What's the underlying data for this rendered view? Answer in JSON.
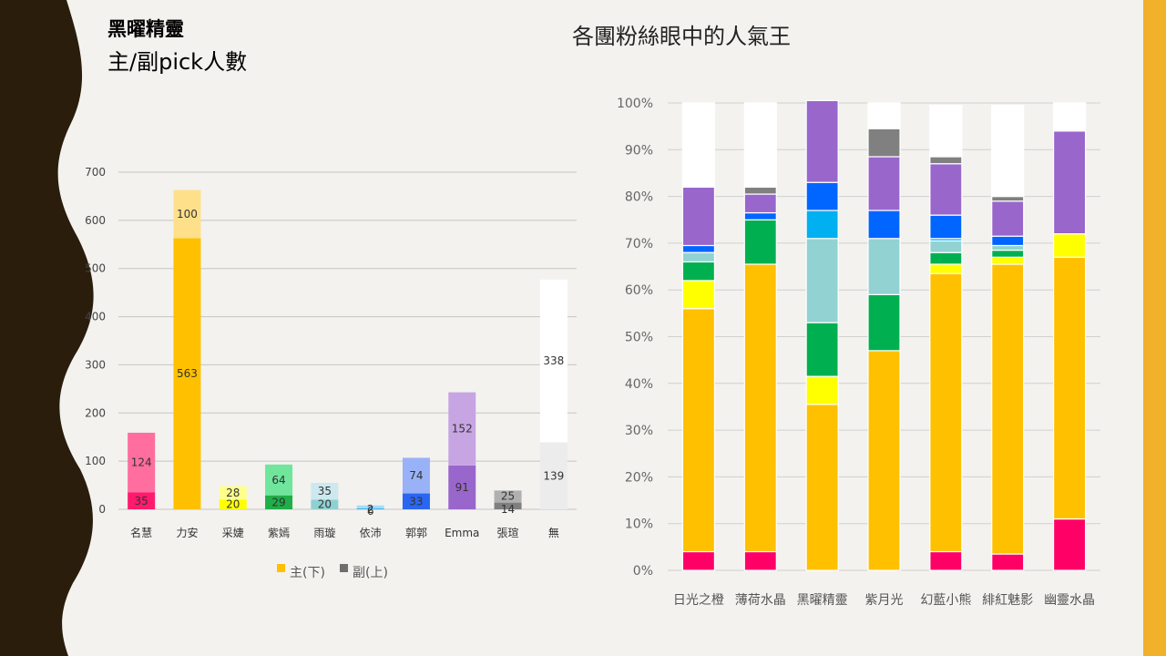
{
  "header": {
    "title": "黑曜精靈",
    "subtitle": "主/副pick人數",
    "right_title": "各團粉絲眼中的人氣王"
  },
  "chart_data": [
    {
      "type": "bar",
      "stacked": true,
      "categories": [
        "名慧",
        "力安",
        "采婕",
        "紫嫣",
        "雨璇",
        "依沛",
        "郭郭",
        "Emma",
        "張瑄",
        "無"
      ],
      "series": [
        {
          "name": "主(下)",
          "values": [
            35,
            563,
            20,
            29,
            20,
            2,
            33,
            91,
            14,
            139
          ]
        },
        {
          "name": "副(上)",
          "values": [
            124,
            100,
            28,
            64,
            35,
            6,
            74,
            152,
            25,
            338
          ]
        }
      ],
      "main_colors": [
        "#ff1a6e",
        "#ffc000",
        "#ffff00",
        "#1fae48",
        "#8fd1d3",
        "#3fb6ec",
        "#2a66f2",
        "#9966cc",
        "#7f7f7f",
        "#ececec"
      ],
      "sub_colors": [
        "#ff6e9e",
        "#ffe08a",
        "#ffff8c",
        "#6fe69c",
        "#cde8ef",
        "#a6dcf6",
        "#99b2f7",
        "#c7a5e3",
        "#b0b0b0",
        "#ffffff"
      ],
      "ylim": [
        0,
        700
      ],
      "yticks": [
        0,
        100,
        200,
        300,
        400,
        500,
        600,
        700
      ],
      "legend_position": "bottom",
      "legend_colors": [
        "#ffc000",
        "#6e6e6e"
      ],
      "grid": true
    },
    {
      "type": "bar",
      "stacked": true,
      "percent": true,
      "categories": [
        "日光之橙",
        "薄荷水晶",
        "黑曜精靈",
        "紫月光",
        "幻藍小熊",
        "緋紅魅影",
        "幽靈水晶"
      ],
      "series": [
        {
          "color": "#ff0066",
          "values": [
            4,
            4,
            0,
            0,
            4,
            3.5,
            11
          ]
        },
        {
          "color": "#ffc000",
          "values": [
            52,
            61.5,
            35.5,
            47,
            59.5,
            62,
            56
          ]
        },
        {
          "color": "#ffff00",
          "values": [
            6,
            0,
            6,
            0,
            2,
            1.5,
            5
          ]
        },
        {
          "color": "#00b050",
          "values": [
            4,
            9.5,
            11.5,
            12,
            2.5,
            1.5,
            0
          ]
        },
        {
          "color": "#92d2d2",
          "values": [
            2,
            0,
            18,
            12,
            2.5,
            1,
            0
          ]
        },
        {
          "color": "#00b0f0",
          "values": [
            0,
            0,
            6,
            0,
            0.5,
            0,
            0
          ]
        },
        {
          "color": "#0066ff",
          "values": [
            1.5,
            1.5,
            6,
            6,
            5,
            2,
            0
          ]
        },
        {
          "color": "#9966cc",
          "values": [
            12.5,
            4,
            17.5,
            11.5,
            11,
            7.5,
            22
          ]
        },
        {
          "color": "#808080",
          "values": [
            0,
            1.5,
            0,
            6,
            1.5,
            1,
            0
          ]
        },
        {
          "color": "#ffffff",
          "values": [
            18,
            18,
            0,
            5.5,
            11,
            19.5,
            6
          ]
        }
      ],
      "ylim": [
        0,
        100
      ],
      "yticks": [
        "0%",
        "10%",
        "20%",
        "30%",
        "40%",
        "50%",
        "60%",
        "70%",
        "80%",
        "90%",
        "100%"
      ],
      "grid": true
    }
  ]
}
